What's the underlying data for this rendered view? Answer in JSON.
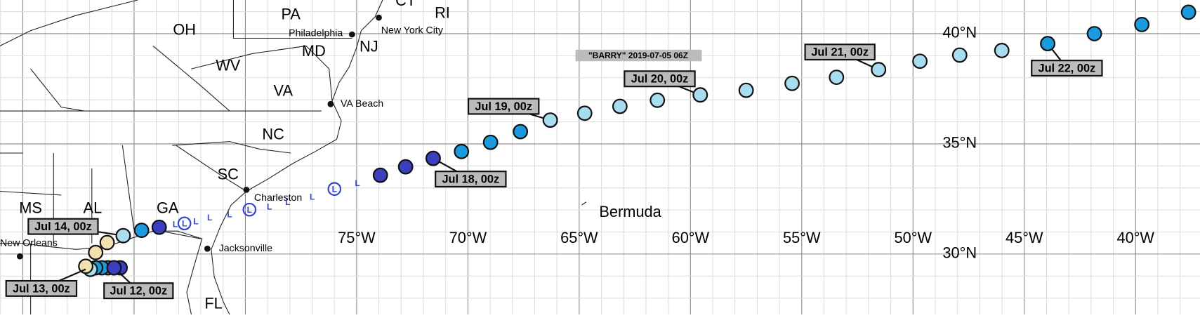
{
  "map": {
    "title": "\"BARRY\" 2019-07-05 06Z",
    "states": [
      "OH",
      "PA",
      "WV",
      "MD",
      "NJ",
      "VA",
      "NC",
      "SC",
      "GA",
      "AL",
      "MS",
      "FL",
      "RI",
      "CT"
    ],
    "cities": [
      "Philadelphia",
      "New York City",
      "VA Beach",
      "Charleston",
      "Jacksonville",
      "New Orleans"
    ],
    "place": "Bermuda",
    "lon_labels": [
      "75°W",
      "70°W",
      "65°W",
      "60°W",
      "55°W",
      "50°W",
      "45°W",
      "40°W"
    ],
    "lat_labels": [
      "40°N",
      "35°N",
      "30°N"
    ],
    "track_labels": [
      "Jul 12, 00z",
      "Jul 13, 00z",
      "Jul 14, 00z",
      "Jul 18, 00z",
      "Jul 19, 00z",
      "Jul 20, 00z",
      "Jul 21, 00z",
      "Jul 22, 00z"
    ],
    "low_symbol": "L"
  }
}
